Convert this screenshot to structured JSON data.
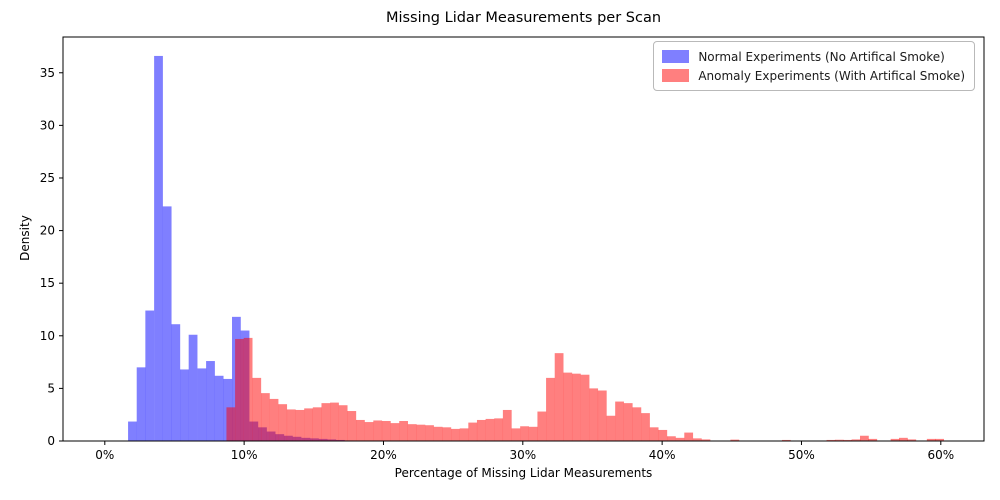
{
  "figure": {
    "background": "#ffffff"
  },
  "chart_data": {
    "type": "histogram",
    "title": "Missing Lidar Measurements per Scan",
    "xlabel": "Percentage of Missing Lidar Measurements",
    "ylabel": "Density",
    "grid": false,
    "legend_position": "upper right",
    "xlim": [
      -3.0,
      63.1
    ],
    "ylim": [
      0,
      38.4
    ],
    "x_ticks": [
      {
        "value": 0,
        "label": "0%"
      },
      {
        "value": 10,
        "label": "10%"
      },
      {
        "value": 20,
        "label": "20%"
      },
      {
        "value": 30,
        "label": "30%"
      },
      {
        "value": 40,
        "label": "40%"
      },
      {
        "value": 50,
        "label": "50%"
      },
      {
        "value": 60,
        "label": "60%"
      }
    ],
    "y_ticks": [
      {
        "value": 0,
        "label": "0"
      },
      {
        "value": 5,
        "label": "5"
      },
      {
        "value": 10,
        "label": "10"
      },
      {
        "value": 15,
        "label": "15"
      },
      {
        "value": 20,
        "label": "20"
      },
      {
        "value": 25,
        "label": "25"
      },
      {
        "value": 30,
        "label": "30"
      },
      {
        "value": 35,
        "label": "35"
      }
    ],
    "bin_width_pct": 0.63,
    "fill_opacity": 0.5,
    "colors": {
      "normal": "#0000ff",
      "anomaly": "#ff0000",
      "overlap_rendered": "#bf4080"
    },
    "legend": {
      "entries": [
        {
          "label": "Normal Experiments (No Artifical Smoke)",
          "color": "#0000ff"
        },
        {
          "label": "Anomaly Experiments (With Artifical Smoke)",
          "color": "#ff0000"
        }
      ]
    },
    "series": [
      {
        "name": "Normal Experiments (No Artifical Smoke)",
        "color": "#0000ff",
        "bins": [
          [
            1.67,
            1.85
          ],
          [
            2.29,
            7.0
          ],
          [
            2.91,
            12.4
          ],
          [
            3.54,
            36.6
          ],
          [
            4.16,
            22.3
          ],
          [
            4.78,
            11.1
          ],
          [
            5.4,
            6.8
          ],
          [
            6.02,
            10.1
          ],
          [
            6.65,
            6.9
          ],
          [
            7.27,
            7.6
          ],
          [
            7.89,
            6.2
          ],
          [
            8.51,
            5.9
          ],
          [
            9.13,
            11.8
          ],
          [
            9.75,
            10.5
          ],
          [
            10.38,
            1.85
          ],
          [
            11.0,
            1.3
          ],
          [
            11.62,
            0.9
          ],
          [
            12.24,
            0.65
          ],
          [
            12.86,
            0.5
          ],
          [
            13.48,
            0.4
          ],
          [
            14.11,
            0.3
          ],
          [
            14.73,
            0.25
          ],
          [
            15.35,
            0.2
          ],
          [
            15.97,
            0.15
          ],
          [
            16.59,
            0.1
          ],
          [
            17.21,
            0.05
          ]
        ]
      },
      {
        "name": "Anomaly Experiments (With Artifical Smoke)",
        "color": "#ff0000",
        "bins": [
          [
            8.73,
            3.2
          ],
          [
            9.35,
            9.7
          ],
          [
            9.97,
            9.8
          ],
          [
            10.59,
            6.0
          ],
          [
            11.21,
            4.55
          ],
          [
            11.83,
            4.0
          ],
          [
            12.45,
            3.5
          ],
          [
            13.07,
            3.0
          ],
          [
            13.69,
            2.95
          ],
          [
            14.31,
            3.1
          ],
          [
            14.93,
            3.2
          ],
          [
            15.55,
            3.6
          ],
          [
            16.17,
            3.65
          ],
          [
            16.79,
            3.4
          ],
          [
            17.41,
            2.85
          ],
          [
            18.03,
            2.0
          ],
          [
            18.65,
            1.8
          ],
          [
            19.27,
            1.95
          ],
          [
            19.89,
            1.9
          ],
          [
            20.51,
            1.7
          ],
          [
            21.13,
            1.9
          ],
          [
            21.75,
            1.6
          ],
          [
            22.37,
            1.55
          ],
          [
            22.99,
            1.5
          ],
          [
            23.61,
            1.35
          ],
          [
            24.23,
            1.3
          ],
          [
            24.85,
            1.15
          ],
          [
            25.47,
            1.2
          ],
          [
            26.09,
            1.75
          ],
          [
            26.71,
            2.0
          ],
          [
            27.33,
            2.1
          ],
          [
            27.95,
            2.15
          ],
          [
            28.57,
            2.95
          ],
          [
            29.19,
            1.2
          ],
          [
            29.81,
            1.4
          ],
          [
            30.43,
            1.35
          ],
          [
            31.05,
            2.8
          ],
          [
            31.67,
            6.0
          ],
          [
            32.29,
            8.35
          ],
          [
            32.91,
            6.5
          ],
          [
            33.53,
            6.4
          ],
          [
            34.15,
            6.3
          ],
          [
            34.77,
            5.0
          ],
          [
            35.39,
            4.8
          ],
          [
            36.01,
            2.4
          ],
          [
            36.63,
            3.75
          ],
          [
            37.25,
            3.6
          ],
          [
            37.87,
            3.2
          ],
          [
            38.49,
            2.65
          ],
          [
            39.11,
            1.3
          ],
          [
            39.73,
            1.05
          ],
          [
            40.35,
            0.45
          ],
          [
            40.97,
            0.3
          ],
          [
            41.59,
            0.8
          ],
          [
            42.21,
            0.25
          ],
          [
            42.83,
            0.15
          ],
          [
            44.9,
            0.13
          ],
          [
            48.6,
            0.1
          ],
          [
            51.8,
            0.1
          ],
          [
            52.4,
            0.12
          ],
          [
            53.0,
            0.1
          ],
          [
            53.6,
            0.15
          ],
          [
            54.2,
            0.5
          ],
          [
            54.8,
            0.2
          ],
          [
            56.4,
            0.2
          ],
          [
            57.0,
            0.3
          ],
          [
            57.6,
            0.15
          ],
          [
            59.0,
            0.2
          ],
          [
            59.6,
            0.2
          ]
        ]
      }
    ]
  }
}
